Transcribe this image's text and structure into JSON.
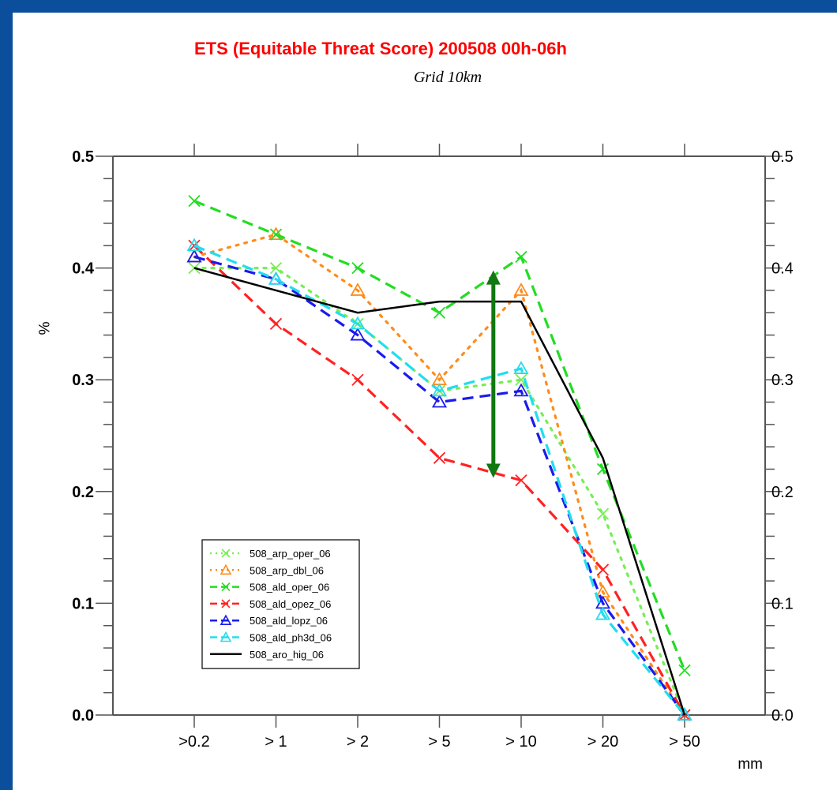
{
  "chart_data": {
    "type": "line",
    "title": "ETS (Equitable Threat Score) 200508 00h-06h",
    "subtitle": "Grid 10km",
    "title_color": "#ff0000",
    "xlabel": "mm",
    "ylabel": "%",
    "categories": [
      ">0.2",
      "> 1",
      "> 2",
      "> 5",
      "> 10",
      "> 20",
      "> 50"
    ],
    "ylim": [
      0.0,
      0.5
    ],
    "yticks": [
      "0.0",
      "0.1",
      "0.2",
      "0.3",
      "0.4",
      "0.5"
    ],
    "grid": false,
    "legend_position": "bottom-left",
    "series": [
      {
        "name": "508_arp_oper_06",
        "color": "#77ee55",
        "dash": "dotted",
        "marker": "x",
        "values": [
          0.4,
          0.4,
          0.35,
          0.29,
          0.3,
          0.18,
          0.0
        ]
      },
      {
        "name": "508_arp_dbl_06",
        "color": "#ff8c1a",
        "dash": "dotted",
        "marker": "triangle",
        "values": [
          0.41,
          0.43,
          0.38,
          0.3,
          0.38,
          0.11,
          0.0
        ]
      },
      {
        "name": "508_ald_oper_06",
        "color": "#22dd22",
        "dash": "dashed",
        "marker": "x",
        "values": [
          0.46,
          0.43,
          0.4,
          0.36,
          0.41,
          0.22,
          0.04
        ]
      },
      {
        "name": "508_ald_opez_06",
        "color": "#ff2222",
        "dash": "dashed",
        "marker": "x",
        "values": [
          0.42,
          0.35,
          0.3,
          0.23,
          0.21,
          0.13,
          0.0
        ]
      },
      {
        "name": "508_ald_lopz_06",
        "color": "#1a1aee",
        "dash": "dashed",
        "marker": "triangle",
        "values": [
          0.41,
          0.39,
          0.34,
          0.28,
          0.29,
          0.1,
          0.0
        ]
      },
      {
        "name": "508_ald_ph3d_06",
        "color": "#22ddee",
        "dash": "dashed",
        "marker": "triangle",
        "values": [
          0.42,
          0.39,
          0.35,
          0.29,
          0.31,
          0.09,
          0.0
        ]
      },
      {
        "name": "508_aro_hig_06",
        "color": "#000000",
        "dash": "solid",
        "marker": "none",
        "values": [
          0.4,
          0.38,
          0.36,
          0.37,
          0.37,
          0.23,
          0.0
        ]
      }
    ],
    "annotations": [
      {
        "type": "double-arrow",
        "color": "#117711",
        "x_between": [
          "> 5",
          "> 10"
        ],
        "y_from": 0.215,
        "y_to": 0.395
      }
    ]
  }
}
